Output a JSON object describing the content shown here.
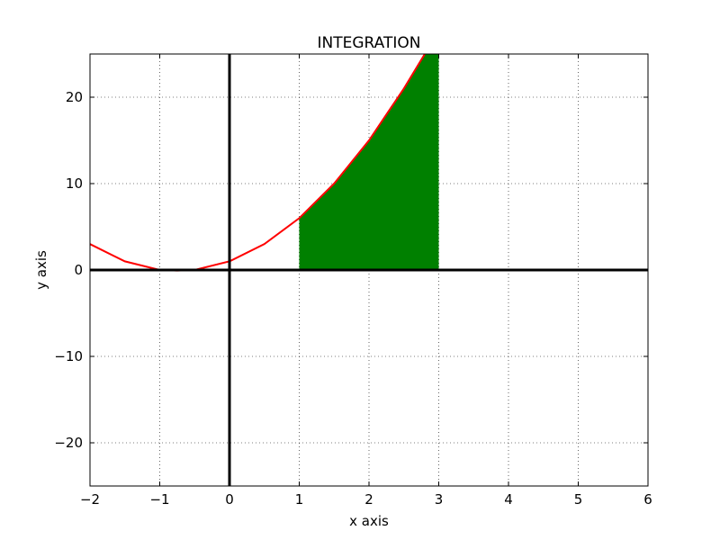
{
  "chart_data": {
    "type": "line",
    "title": "INTEGRATION",
    "xlabel": "x axis",
    "ylabel": "y axis",
    "xlim": [
      -2,
      6
    ],
    "ylim": [
      -25,
      25
    ],
    "grid": true,
    "grid_style": "dotted",
    "x_ticks": [
      -2,
      -1,
      0,
      1,
      2,
      3,
      4,
      5,
      6
    ],
    "x_tick_labels": [
      "−2",
      "−1",
      "0",
      "1",
      "2",
      "3",
      "4",
      "5",
      "6"
    ],
    "y_ticks": [
      -20,
      -10,
      0,
      10,
      20
    ],
    "y_tick_labels": [
      "−20",
      "−10",
      "0",
      "10",
      "20"
    ],
    "axis_lines": {
      "x0": true,
      "y0": true,
      "color": "#000000"
    },
    "series": [
      {
        "type": "line",
        "color": "#ff0000",
        "x": [
          -2.0,
          -1.5,
          -1.0,
          -0.75,
          -0.5,
          0.0,
          0.5,
          1.0,
          1.5,
          2.0,
          2.5,
          2.8
        ],
        "y": [
          3.0,
          1.0,
          0.0,
          -0.0625,
          0.0,
          1.0,
          3.0,
          6.0,
          10.0,
          15.0,
          21.0,
          25.0
        ]
      }
    ],
    "fill": {
      "color": "#008000",
      "x_from": 1,
      "x_to": 3,
      "to_y": 0
    }
  }
}
